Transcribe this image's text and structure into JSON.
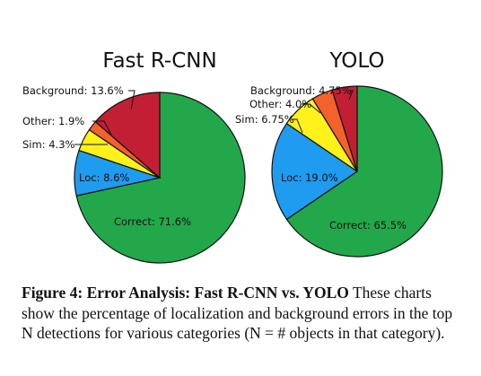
{
  "chart_data": [
    {
      "type": "pie",
      "title": "Fast R-CNN",
      "slices": [
        {
          "label": "Correct",
          "value": 71.6,
          "text": "Correct: 71.6%",
          "color": "#22a84a"
        },
        {
          "label": "Loc",
          "value": 8.6,
          "text": "Loc: 8.6%",
          "color": "#1f9bf0"
        },
        {
          "label": "Sim",
          "value": 4.3,
          "text": "Sim: 4.3%",
          "color": "#fff11a"
        },
        {
          "label": "Other",
          "value": 1.9,
          "text": "Other: 1.9%",
          "color": "#f2622a"
        },
        {
          "label": "Background",
          "value": 13.6,
          "text": "Background: 13.6%",
          "color": "#c21f35"
        }
      ]
    },
    {
      "type": "pie",
      "title": "YOLO",
      "slices": [
        {
          "label": "Correct",
          "value": 65.5,
          "text": "Correct: 65.5%",
          "color": "#22a84a"
        },
        {
          "label": "Loc",
          "value": 19.0,
          "text": "Loc: 19.0%",
          "color": "#1f9bf0"
        },
        {
          "label": "Sim",
          "value": 6.75,
          "text": "Sim: 6.75%",
          "color": "#fff11a"
        },
        {
          "label": "Other",
          "value": 4.0,
          "text": "Other: 4.0%",
          "color": "#f2622a"
        },
        {
          "label": "Background",
          "value": 4.75,
          "text": "Background: 4.75%",
          "color": "#c21f35"
        }
      ]
    }
  ],
  "caption": {
    "lead": "Figure 4:  Error Analysis:  Fast R-CNN vs.  YOLO",
    "body": " These charts show the percentage of localization and background errors in the top N detections for various categories (N = # objects in that category)."
  }
}
